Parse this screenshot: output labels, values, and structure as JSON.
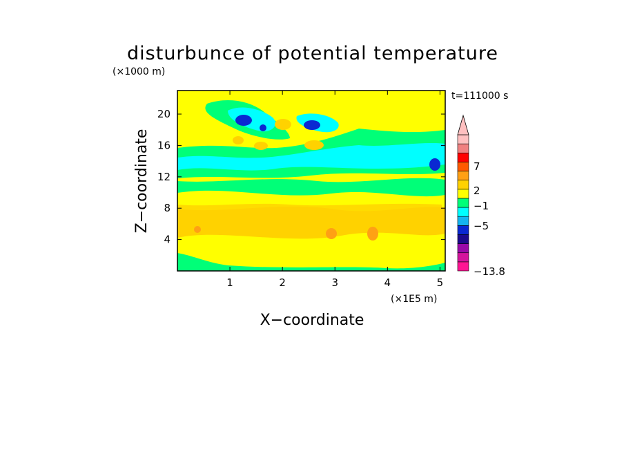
{
  "chart_data": {
    "type": "heatmap",
    "title": "disturbunce of potential temperature",
    "y_unit_label": "(×1000 m)",
    "x_unit_label": "(×1E5 m)",
    "xlabel": "X−coordinate",
    "ylabel": "Z−coordinate",
    "time_label": "t=111000 s",
    "xlim": [
      0,
      5.1
    ],
    "ylim": [
      0,
      23
    ],
    "x_ticks": [
      "1",
      "2",
      "3",
      "4",
      "5"
    ],
    "y_ticks": [
      "4",
      "8",
      "12",
      "16",
      "20"
    ],
    "colorbar": {
      "labels": [
        "7",
        "2",
        "−1",
        "−5",
        "−13.8"
      ],
      "levels": [
        -13.8,
        -9,
        -7,
        -5,
        -4,
        -3,
        -2,
        -1,
        0,
        1,
        2,
        3,
        5,
        7,
        9,
        11
      ],
      "colors": [
        "#ff1493",
        "#d4149c",
        "#9a0aa8",
        "#1c0a8c",
        "#0a28d2",
        "#14b4f0",
        "#00ffff",
        "#00ff78",
        "#ffff00",
        "#ffd200",
        "#ffa014",
        "#ff5a00",
        "#ff0000",
        "#f08080",
        "#ffc0c0"
      ]
    },
    "regions": [
      {
        "value_level": "0 to 1",
        "x": [
          0,
          5.1
        ],
        "z": [
          0,
          23
        ]
      },
      {
        "value_level": "-1 to 0",
        "x": [
          0,
          5.1
        ],
        "z": [
          9.0,
          11.5
        ]
      },
      {
        "value_level": "-1 to 0",
        "x": [
          0,
          5.1
        ],
        "z": [
          14.5,
          16.0
        ]
      },
      {
        "value_level": "-2 to -1",
        "x": [
          0.6,
          5.1
        ],
        "z": [
          12.0,
          14.5
        ]
      },
      {
        "value_level": "1 to 2",
        "x": [
          0,
          5.1
        ],
        "z": [
          2.5,
          7.5
        ]
      },
      {
        "value_level": "-4 to -3",
        "x": [
          1.3,
          1.55
        ],
        "z": [
          18.3,
          19.5
        ]
      },
      {
        "value_level": "-4 to -3",
        "x": [
          2.4,
          2.7
        ],
        "z": [
          18.5,
          19.4
        ]
      },
      {
        "value_level": "-4 to -3",
        "x": [
          4.75,
          5.0
        ],
        "z": [
          12.5,
          13.8
        ]
      },
      {
        "value_level": "2 to 3",
        "x": [
          1.85,
          2.15
        ],
        "z": [
          18.5,
          19.6
        ]
      },
      {
        "value_level": "2 to 3",
        "x": [
          2.45,
          2.85
        ],
        "z": [
          15.5,
          16.8
        ]
      }
    ]
  }
}
